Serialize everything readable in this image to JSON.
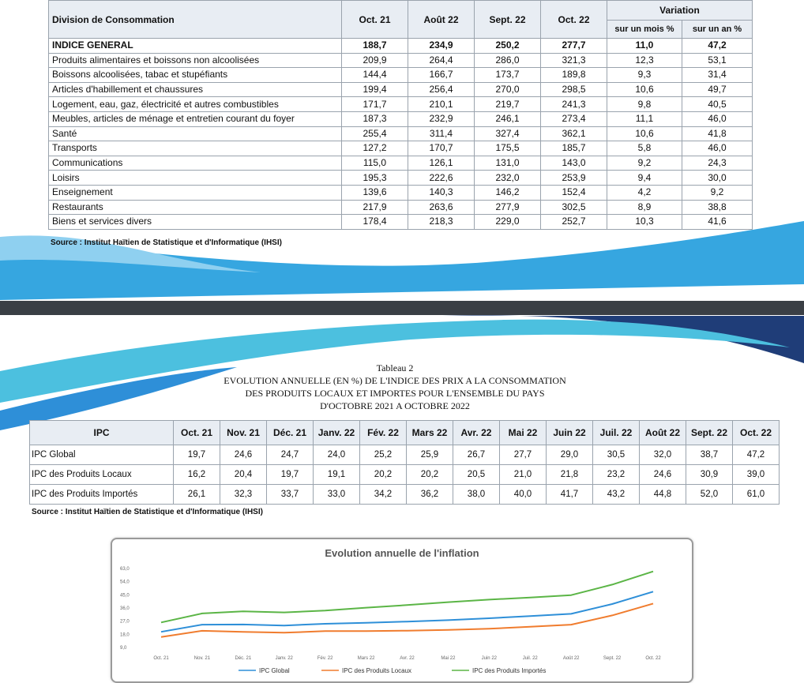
{
  "table1": {
    "col_division": "Division de Consommation",
    "months": [
      "Oct. 21",
      "Août 22",
      "Sept. 22",
      "Oct. 22"
    ],
    "variation": "Variation",
    "var_month": "sur un mois %",
    "var_year": "sur un an %",
    "rows": [
      {
        "label": "INDICE GENERAL",
        "v": [
          "188,7",
          "234,9",
          "250,2",
          "277,7",
          "11,0",
          "47,2"
        ]
      },
      {
        "label": "Produits alimentaires et boissons non alcoolisées",
        "v": [
          "209,9",
          "264,4",
          "286,0",
          "321,3",
          "12,3",
          "53,1"
        ]
      },
      {
        "label": "Boissons alcoolisées, tabac et stupéfiants",
        "v": [
          "144,4",
          "166,7",
          "173,7",
          "189,8",
          "9,3",
          "31,4"
        ]
      },
      {
        "label": "Articles d'habillement et chaussures",
        "v": [
          "199,4",
          "256,4",
          "270,0",
          "298,5",
          "10,6",
          "49,7"
        ]
      },
      {
        "label": "Logement, eau, gaz, électricité et autres combustibles",
        "v": [
          "171,7",
          "210,1",
          "219,7",
          "241,3",
          "9,8",
          "40,5"
        ]
      },
      {
        "label": "Meubles, articles de ménage et entretien courant du foyer",
        "v": [
          "187,3",
          "232,9",
          "246,1",
          "273,4",
          "11,1",
          "46,0"
        ]
      },
      {
        "label": "Santé",
        "v": [
          "255,4",
          "311,4",
          "327,4",
          "362,1",
          "10,6",
          "41,8"
        ]
      },
      {
        "label": "Transports",
        "v": [
          "127,2",
          "170,7",
          "175,5",
          "185,7",
          "5,8",
          "46,0"
        ]
      },
      {
        "label": "Communications",
        "v": [
          "115,0",
          "126,1",
          "131,0",
          "143,0",
          "9,2",
          "24,3"
        ]
      },
      {
        "label": "Loisirs",
        "v": [
          "195,3",
          "222,6",
          "232,0",
          "253,9",
          "9,4",
          "30,0"
        ]
      },
      {
        "label": "Enseignement",
        "v": [
          "139,6",
          "140,3",
          "146,2",
          "152,4",
          "4,2",
          "9,2"
        ]
      },
      {
        "label": "Restaurants",
        "v": [
          "217,9",
          "263,6",
          "277,9",
          "302,5",
          "8,9",
          "38,8"
        ]
      },
      {
        "label": "Biens et services divers",
        "v": [
          "178,4",
          "218,3",
          "229,0",
          "252,7",
          "10,3",
          "41,6"
        ]
      }
    ]
  },
  "source1": "Source  : Institut Haïtien de Statistique et d'Informatique (IHSI)",
  "tableau2": {
    "line1": "Tableau 2",
    "line2": "EVOLUTION ANNUELLE (EN %) DE L'INDICE DES PRIX A LA CONSOMMATION",
    "line3": "DES PRODUITS LOCAUX ET IMPORTES POUR L'ENSEMBLE DU PAYS",
    "line4": "D'OCTOBRE 2021 A OCTOBRE 2022"
  },
  "table2": {
    "col_ipc": "IPC",
    "months": [
      "Oct. 21",
      "Nov. 21",
      "Déc. 21",
      "Janv. 22",
      "Fév. 22",
      "Mars 22",
      "Avr. 22",
      "Mai 22",
      "Juin 22",
      "Juil. 22",
      "Août 22",
      "Sept. 22",
      "Oct. 22"
    ],
    "rows": [
      {
        "label": "IPC Global",
        "v": [
          "19,7",
          "24,6",
          "24,7",
          "24,0",
          "25,2",
          "25,9",
          "26,7",
          "27,7",
          "29,0",
          "30,5",
          "32,0",
          "38,7",
          "47,2"
        ]
      },
      {
        "label": "IPC des Produits Locaux",
        "v": [
          "16,2",
          "20,4",
          "19,7",
          "19,1",
          "20,2",
          "20,2",
          "20,5",
          "21,0",
          "21,8",
          "23,2",
          "24,6",
          "30,9",
          "39,0"
        ]
      },
      {
        "label": "IPC des Produits Importés",
        "v": [
          "26,1",
          "32,3",
          "33,7",
          "33,0",
          "34,2",
          "36,2",
          "38,0",
          "40,0",
          "41,7",
          "43,2",
          "44,8",
          "52,0",
          "61,0"
        ]
      }
    ]
  },
  "source2": "Source  : Institut Haïtien de Statistique et d'Informatique (IHSI)",
  "chart_data": {
    "type": "line",
    "title": "Evolution annuelle de l'inflation",
    "categories": [
      "Oct. 21",
      "Nov. 21",
      "Déc. 21",
      "Janv. 22",
      "Fév. 22",
      "Mars 22",
      "Avr. 22",
      "Mai 22",
      "Juin 22",
      "Juil. 22",
      "Août 22",
      "Sept. 22",
      "Oct. 22"
    ],
    "series": [
      {
        "name": "IPC Global",
        "color": "#2e8fd8",
        "values": [
          19.7,
          24.6,
          24.7,
          24.0,
          25.2,
          25.9,
          26.7,
          27.7,
          29.0,
          30.5,
          32.0,
          38.7,
          47.2
        ]
      },
      {
        "name": "IPC des Produits Locaux",
        "color": "#f07c2e",
        "values": [
          16.2,
          20.4,
          19.7,
          19.1,
          20.2,
          20.2,
          20.5,
          21.0,
          21.8,
          23.2,
          24.6,
          30.9,
          39.0
        ]
      },
      {
        "name": "IPC des Produits Importés",
        "color": "#5bb546",
        "values": [
          26.1,
          32.3,
          33.7,
          33.0,
          34.2,
          36.2,
          38.0,
          40.0,
          41.7,
          43.2,
          44.8,
          52.0,
          61.0
        ]
      }
    ],
    "yticks": [
      "63,0",
      "54,0",
      "45,0",
      "36,0",
      "27,0",
      "18,0",
      "9,0"
    ],
    "ylim": [
      9,
      63
    ],
    "grid": false,
    "legend": "bottom"
  }
}
